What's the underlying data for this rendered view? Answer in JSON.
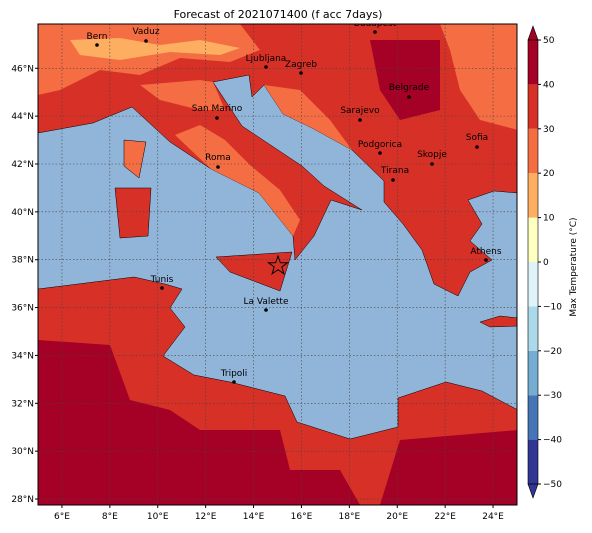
{
  "title": "Forecast of 2021071400 (f acc 7days)",
  "map": {
    "xlim": [
      5,
      25
    ],
    "ylim": [
      27.75,
      47.85
    ],
    "xticks": [
      {
        "value": 6,
        "label": "6°E"
      },
      {
        "value": 8,
        "label": "8°E"
      },
      {
        "value": 10,
        "label": "10°E"
      },
      {
        "value": 12,
        "label": "12°E"
      },
      {
        "value": 14,
        "label": "14°E"
      },
      {
        "value": 16,
        "label": "16°E"
      },
      {
        "value": 18,
        "label": "18°E"
      },
      {
        "value": 20,
        "label": "20°E"
      },
      {
        "value": 22,
        "label": "22°E"
      },
      {
        "value": 24,
        "label": "24°E"
      }
    ],
    "yticks": [
      {
        "value": 28,
        "label": "28°N"
      },
      {
        "value": 30,
        "label": "30°N"
      },
      {
        "value": 32,
        "label": "32°N"
      },
      {
        "value": 34,
        "label": "34°N"
      },
      {
        "value": 36,
        "label": "36°N"
      },
      {
        "value": 38,
        "label": "38°N"
      },
      {
        "value": 40,
        "label": "40°N"
      },
      {
        "value": 42,
        "label": "42°N"
      },
      {
        "value": 44,
        "label": "44°N"
      },
      {
        "value": 46,
        "label": "46°N"
      }
    ],
    "grid": true,
    "cities": [
      "Bern",
      "Vaduz",
      "Budapest",
      "Ljubljana",
      "Zagreb",
      "San Marino",
      "Belgrade",
      "Sarajevo",
      "Podgorica",
      "Sofia",
      "Skopje",
      "Tirana",
      "Roma",
      "Athens",
      "Tunis",
      "La Valette",
      "Tripoli"
    ]
  },
  "colorbar": {
    "label": "Max Temperature (°C)",
    "lim": [
      -50,
      50
    ],
    "levels": [
      -50,
      -40,
      -30,
      -20,
      -10,
      0,
      10,
      20,
      30,
      40,
      50
    ],
    "colors": [
      "#313695",
      "#4575b4",
      "#74add1",
      "#abd9e9",
      "#e0f3f8",
      "#ffffbf",
      "#fdae61",
      "#f46d43",
      "#d73027",
      "#a50026"
    ],
    "ticks": [
      {
        "value": -50,
        "label": "−50"
      },
      {
        "value": -40,
        "label": "−40"
      },
      {
        "value": -30,
        "label": "−30"
      },
      {
        "value": -20,
        "label": "−20"
      },
      {
        "value": -10,
        "label": "−10"
      },
      0,
      10,
      20,
      30,
      40,
      50
    ]
  }
}
